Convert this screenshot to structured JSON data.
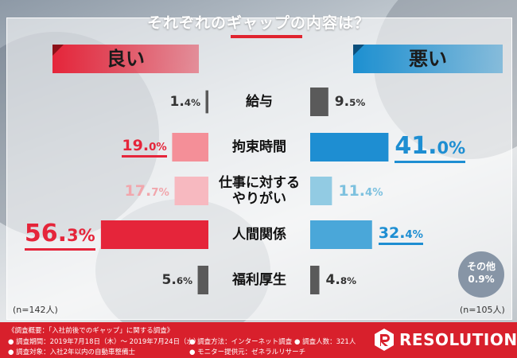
{
  "title": "それぞれのギャップの内容は？",
  "heads": {
    "good": "良い",
    "bad": "悪い"
  },
  "colors": {
    "red": "#e5253a",
    "pink_red": "#f48f98",
    "pink": "#f7b9c0",
    "blue": "#1e8ed2",
    "mid_blue": "#4aa7d9",
    "light_blue": "#92cbe3",
    "gray": "#5a5a5a"
  },
  "chart_data": {
    "type": "bar",
    "categories": [
      "給与",
      "拘束時間",
      "仕事に対するやりがい",
      "人間関係",
      "福利厚生"
    ],
    "category_lines": [
      [
        "給与"
      ],
      [
        "拘束時間"
      ],
      [
        "仕事に対する",
        "やりがい"
      ],
      [
        "人間関係"
      ],
      [
        "福利厚生"
      ]
    ],
    "series": [
      {
        "name": "良い",
        "values": [
          1.4,
          19.0,
          17.7,
          56.3,
          5.6
        ],
        "labels": [
          [
            "1.",
            "4%"
          ],
          [
            "19.",
            "0%"
          ],
          [
            "17.",
            "7%"
          ],
          [
            "56.",
            "3%"
          ],
          [
            "5.",
            "6%"
          ]
        ]
      },
      {
        "name": "悪い",
        "values": [
          9.5,
          41.0,
          11.4,
          32.4,
          4.8
        ],
        "labels": [
          [
            "9.",
            "5%"
          ],
          [
            "41.",
            "0%"
          ],
          [
            "11.",
            "4%"
          ],
          [
            "32.",
            "4%"
          ],
          [
            "4.",
            "8%"
          ]
        ]
      }
    ],
    "other": {
      "label": "その他",
      "value": "0.9%"
    },
    "sample_sizes": {
      "good": "(n=142人)",
      "bad": "(n=105人)"
    }
  },
  "footer": {
    "notes": [
      "《調査概要：「入社前後でのギャップ」に関する調査》",
      "● 調査期間：2019年7月18日（木）～ 2019年7月24日（水）",
      "● 調査方法：インターネット調査",
      "● 調査人数：321人",
      "● 調査対象：入社2年以内の自動車整備士",
      "● モニター提供元：ゼネラルリサーチ"
    ],
    "logo": "RESOLUTION"
  }
}
